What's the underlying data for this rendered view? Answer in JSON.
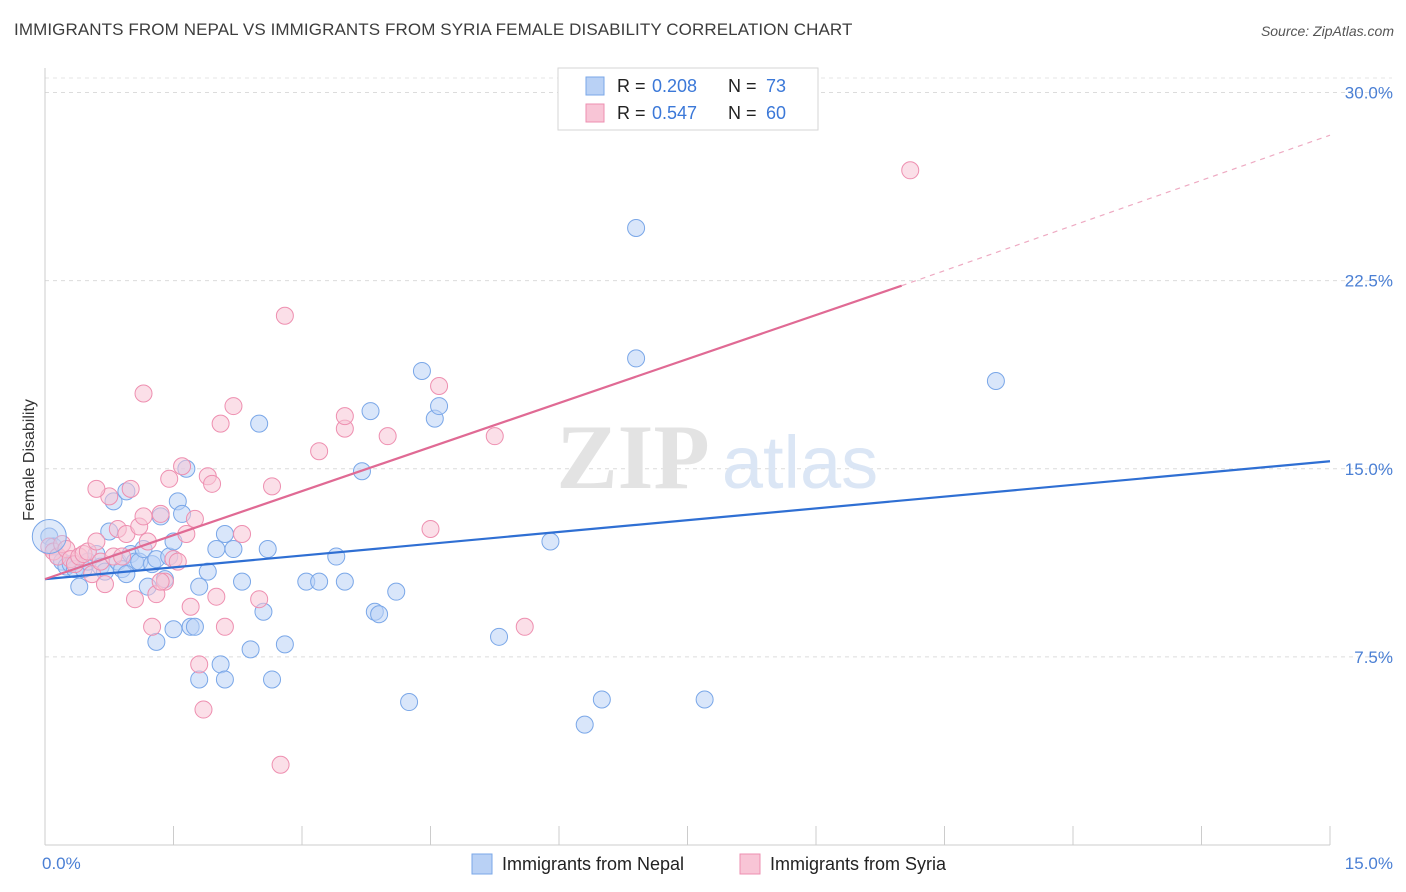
{
  "title": "IMMIGRANTS FROM NEPAL VS IMMIGRANTS FROM SYRIA FEMALE DISABILITY CORRELATION CHART",
  "source": "Source: ZipAtlas.com",
  "watermark": {
    "zip": "ZIP",
    "atlas": "atlas"
  },
  "legend_top": [
    {
      "r_label": "R =",
      "r_value": "0.208",
      "n_label": "N =",
      "n_value": "73",
      "color": "#7aa7e8",
      "fill": "#b9d1f5"
    },
    {
      "r_label": "R =",
      "r_value": "0.547",
      "n_label": "N =",
      "n_value": "60",
      "color": "#ee8fb0",
      "fill": "#f8c5d6"
    }
  ],
  "chart_data": {
    "type": "scatter",
    "title": "IMMIGRANTS FROM NEPAL VS IMMIGRANTS FROM SYRIA FEMALE DISABILITY CORRELATION CHART",
    "xlabel": "",
    "ylabel": "Female Disability",
    "xlim": [
      0,
      15
    ],
    "ylim": [
      0,
      30.5
    ],
    "x_tick_labels": [
      "0.0%",
      "15.0%"
    ],
    "y_ticks": [
      7.5,
      15.0,
      22.5,
      30.0
    ],
    "y_tick_labels": [
      "7.5%",
      "15.0%",
      "22.5%",
      "30.0%"
    ],
    "grid": "horizontal dashed",
    "legend": "bottom-center",
    "series": [
      {
        "name": "Immigrants from Nepal",
        "color": "#7aa7e8",
        "fill": "#b9d1f5",
        "trend": {
          "x0": 0,
          "y0": 10.6,
          "x1": 15,
          "y1": 15.3
        },
        "points": [
          [
            0.05,
            12.3
          ],
          [
            0.1,
            11.9
          ],
          [
            0.15,
            11.5
          ],
          [
            0.2,
            11.3
          ],
          [
            0.25,
            11.1
          ],
          [
            0.3,
            11.2
          ],
          [
            0.35,
            11.0
          ],
          [
            0.4,
            10.3
          ],
          [
            0.45,
            11.0
          ],
          [
            0.5,
            11.3
          ],
          [
            0.6,
            11.6
          ],
          [
            0.65,
            11.1
          ],
          [
            0.7,
            10.9
          ],
          [
            0.75,
            12.5
          ],
          [
            0.8,
            13.7
          ],
          [
            0.85,
            11.3
          ],
          [
            0.9,
            11.0
          ],
          [
            0.95,
            14.1
          ],
          [
            1.0,
            11.6
          ],
          [
            1.05,
            11.3
          ],
          [
            1.1,
            11.3
          ],
          [
            1.15,
            11.8
          ],
          [
            1.2,
            10.3
          ],
          [
            1.25,
            11.2
          ],
          [
            1.3,
            11.4
          ],
          [
            1.35,
            13.1
          ],
          [
            1.4,
            10.6
          ],
          [
            1.45,
            11.5
          ],
          [
            1.5,
            12.1
          ],
          [
            1.55,
            13.7
          ],
          [
            1.6,
            13.2
          ],
          [
            1.65,
            15.0
          ],
          [
            1.7,
            8.7
          ],
          [
            1.75,
            8.7
          ],
          [
            1.8,
            10.3
          ],
          [
            1.9,
            10.9
          ],
          [
            2.0,
            11.8
          ],
          [
            2.05,
            7.2
          ],
          [
            2.1,
            12.4
          ],
          [
            2.2,
            11.8
          ],
          [
            2.3,
            10.5
          ],
          [
            2.4,
            7.8
          ],
          [
            2.5,
            16.8
          ],
          [
            2.55,
            9.3
          ],
          [
            2.6,
            11.8
          ],
          [
            2.8,
            8.0
          ],
          [
            3.05,
            10.5
          ],
          [
            3.2,
            10.5
          ],
          [
            3.4,
            11.5
          ],
          [
            3.5,
            10.5
          ],
          [
            3.7,
            14.9
          ],
          [
            3.8,
            17.3
          ],
          [
            3.85,
            9.3
          ],
          [
            3.9,
            9.2
          ],
          [
            4.1,
            10.1
          ],
          [
            4.25,
            5.7
          ],
          [
            4.4,
            18.9
          ],
          [
            4.55,
            17.0
          ],
          [
            4.6,
            17.5
          ],
          [
            5.3,
            8.3
          ],
          [
            5.9,
            12.1
          ],
          [
            6.3,
            4.8
          ],
          [
            6.5,
            5.8
          ],
          [
            6.9,
            19.4
          ],
          [
            6.9,
            24.6
          ],
          [
            7.7,
            5.8
          ],
          [
            11.1,
            18.5
          ],
          [
            1.8,
            6.6
          ],
          [
            2.1,
            6.6
          ],
          [
            2.65,
            6.6
          ],
          [
            0.95,
            10.8
          ],
          [
            1.5,
            8.6
          ],
          [
            1.3,
            8.1
          ]
        ]
      },
      {
        "name": "Immigrants from Syria",
        "color": "#ee8fb0",
        "fill": "#f8c5d6",
        "trend": {
          "x0": 0,
          "y0": 10.6,
          "x1": 10.0,
          "y1": 22.3
        },
        "trend_ext": {
          "x0": 10.0,
          "y0": 22.3,
          "x1": 15,
          "y1": 28.3
        },
        "points": [
          [
            0.05,
            11.9
          ],
          [
            0.1,
            11.7
          ],
          [
            0.15,
            11.5
          ],
          [
            0.2,
            12.0
          ],
          [
            0.25,
            11.8
          ],
          [
            0.3,
            11.4
          ],
          [
            0.35,
            11.2
          ],
          [
            0.4,
            11.5
          ],
          [
            0.45,
            11.6
          ],
          [
            0.5,
            11.7
          ],
          [
            0.55,
            10.8
          ],
          [
            0.6,
            12.1
          ],
          [
            0.65,
            11.3
          ],
          [
            0.7,
            10.4
          ],
          [
            0.75,
            13.9
          ],
          [
            0.8,
            11.5
          ],
          [
            0.85,
            12.6
          ],
          [
            0.9,
            11.5
          ],
          [
            0.95,
            12.4
          ],
          [
            1.0,
            14.2
          ],
          [
            1.05,
            9.8
          ],
          [
            1.1,
            12.7
          ],
          [
            1.15,
            13.1
          ],
          [
            1.2,
            12.1
          ],
          [
            1.25,
            8.7
          ],
          [
            1.3,
            10.0
          ],
          [
            1.35,
            13.2
          ],
          [
            1.4,
            10.5
          ],
          [
            1.45,
            14.6
          ],
          [
            1.5,
            11.4
          ],
          [
            1.55,
            11.3
          ],
          [
            1.6,
            15.1
          ],
          [
            1.65,
            12.4
          ],
          [
            1.7,
            9.5
          ],
          [
            1.75,
            13.0
          ],
          [
            1.8,
            7.2
          ],
          [
            1.85,
            5.4
          ],
          [
            1.9,
            14.7
          ],
          [
            1.95,
            14.4
          ],
          [
            2.0,
            9.9
          ],
          [
            2.05,
            16.8
          ],
          [
            2.1,
            8.7
          ],
          [
            2.2,
            17.5
          ],
          [
            2.3,
            12.4
          ],
          [
            2.5,
            9.8
          ],
          [
            2.65,
            14.3
          ],
          [
            2.75,
            3.2
          ],
          [
            2.8,
            21.1
          ],
          [
            3.2,
            15.7
          ],
          [
            3.5,
            16.6
          ],
          [
            3.5,
            17.1
          ],
          [
            4.0,
            16.3
          ],
          [
            4.5,
            12.6
          ],
          [
            4.6,
            18.3
          ],
          [
            5.25,
            16.3
          ],
          [
            1.15,
            18.0
          ],
          [
            0.6,
            14.2
          ],
          [
            1.35,
            10.5
          ],
          [
            10.1,
            26.9
          ],
          [
            5.6,
            8.7
          ]
        ]
      }
    ]
  },
  "bottom_legend": [
    {
      "label": "Immigrants from Nepal",
      "fill": "#b9d1f5",
      "stroke": "#7aa7e8"
    },
    {
      "label": "Immigrants from Syria",
      "fill": "#f8c5d6",
      "stroke": "#ee8fb0"
    }
  ]
}
